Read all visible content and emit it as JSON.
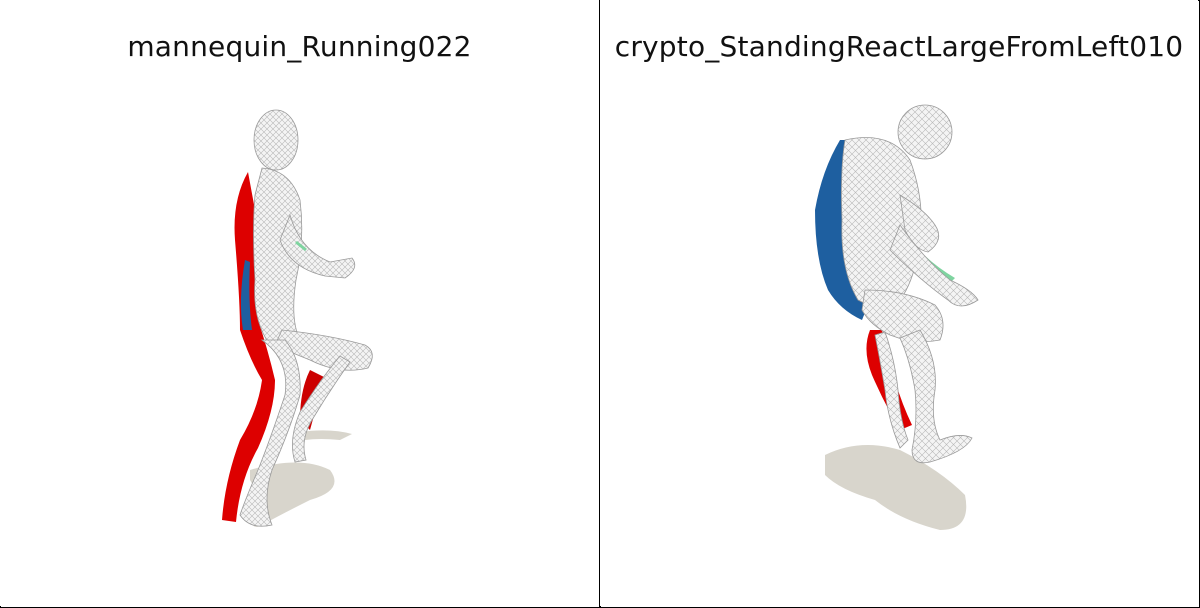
{
  "panels": [
    {
      "title": "mannequin_Running022"
    },
    {
      "title": "crypto_StandingReactLargeFromLeft010"
    }
  ],
  "colors": {
    "shadow": "#d8d5cc",
    "mesh": "#e4e4e4",
    "red": "#dd0000",
    "blue": "#1e5fa0",
    "green": "#7fd4a0"
  }
}
